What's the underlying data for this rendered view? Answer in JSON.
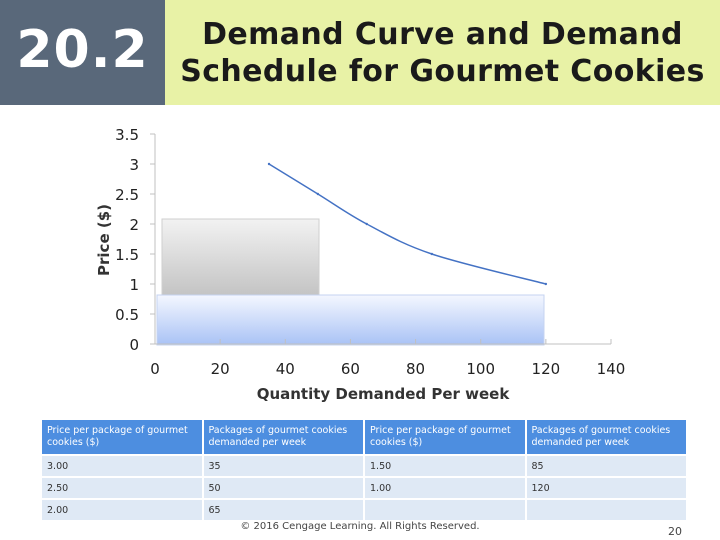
{
  "slide": {
    "number": "20.2",
    "title_line1": "Demand Curve and Demand",
    "title_line2": "Schedule for Gourmet Cookies",
    "footer": "© 2016 Cengage Learning. All Rights Reserved.",
    "page": "20"
  },
  "chart_data": {
    "type": "line",
    "xlabel": "Quantity Demanded Per week",
    "ylabel": "Price ($)",
    "xlim": [
      0,
      140
    ],
    "ylim": [
      0,
      3.5
    ],
    "xticks": [
      0,
      20,
      40,
      60,
      80,
      100,
      120,
      140
    ],
    "yticks": [
      0,
      0.5,
      1,
      1.5,
      2,
      2.5,
      3,
      3.5
    ],
    "series": [
      {
        "x": [
          35,
          50,
          65,
          85,
          120
        ],
        "y": [
          3.0,
          2.5,
          2.0,
          1.5,
          1.0
        ]
      }
    ],
    "colors": {
      "line": "#4472c4",
      "axis": "#c0c0c0",
      "tick_text": "#222222"
    }
  },
  "schedule": {
    "headers": [
      "Price per package of gourmet cookies ($)",
      "Packages of gourmet cookies demanded per week",
      "Price per package of gourmet cookies ($)",
      "Packages of gourmet cookies demanded per week"
    ],
    "rows": [
      [
        "3.00",
        "35",
        "1.50",
        "85"
      ],
      [
        "2.50",
        "50",
        "1.00",
        "120"
      ],
      [
        "2.00",
        "65",
        "",
        ""
      ]
    ]
  }
}
